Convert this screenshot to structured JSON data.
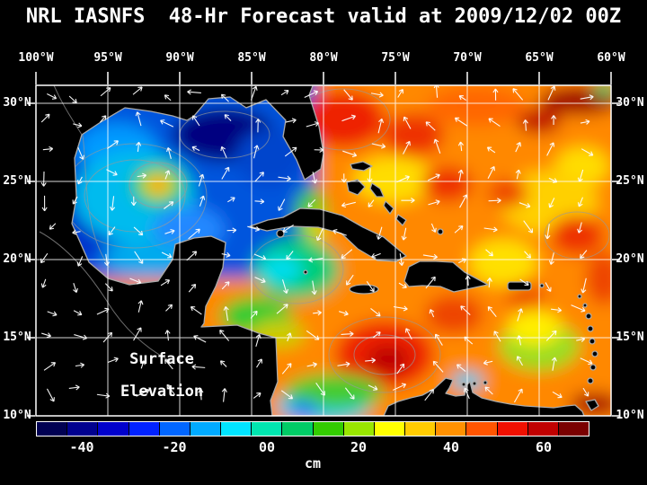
{
  "title": "NRL IASNFS  48-Hr Forecast valid at 2009/12/02 00Z",
  "map": {
    "overlay_label_line1": "Surface",
    "overlay_label_line2": "Elevation",
    "lon_ticks": [
      "100°W",
      "95°W",
      "90°W",
      "85°W",
      "80°W",
      "75°W",
      "70°W",
      "65°W",
      "60°W"
    ],
    "lat_ticks": [
      "30°N",
      "25°N",
      "20°N",
      "15°N",
      "10°N"
    ],
    "grid_color": "#ffffff",
    "coastline_color": "#aaaaaa",
    "vector_color": "#ffffff",
    "land_color": "#000000"
  },
  "colorbar": {
    "unit": "cm",
    "tick_labels": [
      "-40",
      "-20",
      "00",
      "20",
      "40",
      "60"
    ],
    "colors": [
      "#000052",
      "#00008f",
      "#0000cc",
      "#0022ff",
      "#0066ff",
      "#00aaff",
      "#00e4ff",
      "#00e6b0",
      "#00cc66",
      "#33cc00",
      "#99e600",
      "#ffff00",
      "#ffcc00",
      "#ff9100",
      "#ff5500",
      "#f01000",
      "#c00000",
      "#7a0000"
    ]
  }
}
